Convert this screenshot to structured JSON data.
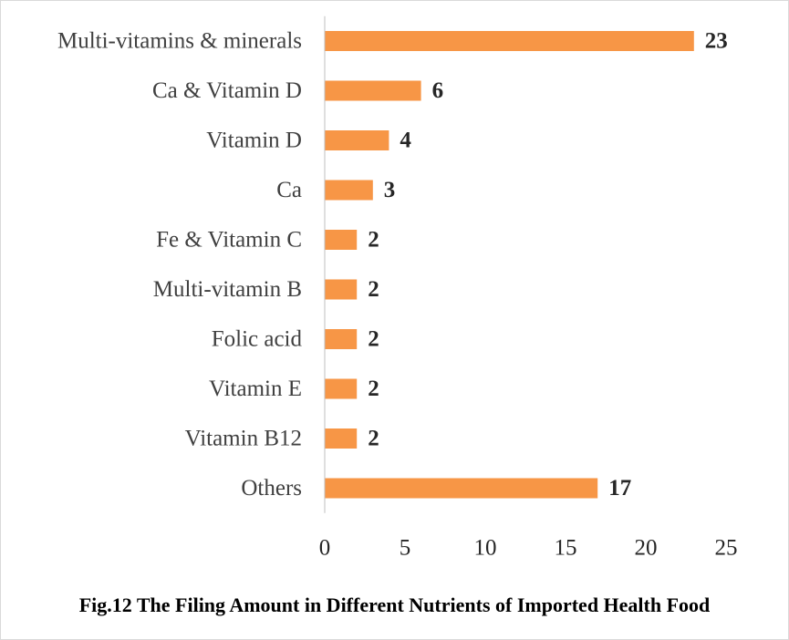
{
  "chart_data": {
    "type": "bar",
    "orientation": "horizontal",
    "categories": [
      "Multi-vitamins & minerals",
      "Ca & Vitamin D",
      "Vitamin D",
      "Ca",
      "Fe & Vitamin C",
      "Multi-vitamin B",
      "Folic acid",
      "Vitamin E",
      "Vitamin B12",
      "Others"
    ],
    "values": [
      23,
      6,
      4,
      3,
      2,
      2,
      2,
      2,
      2,
      17
    ],
    "xlim": [
      0,
      25
    ],
    "xticks": [
      "0",
      "5",
      "10",
      "15",
      "20",
      "25"
    ],
    "bar_color": "#F79646",
    "grid": false,
    "legend": "none",
    "data_labels": true
  },
  "caption": "Fig.12 The Filing Amount in Different Nutrients of Imported Health  Food"
}
